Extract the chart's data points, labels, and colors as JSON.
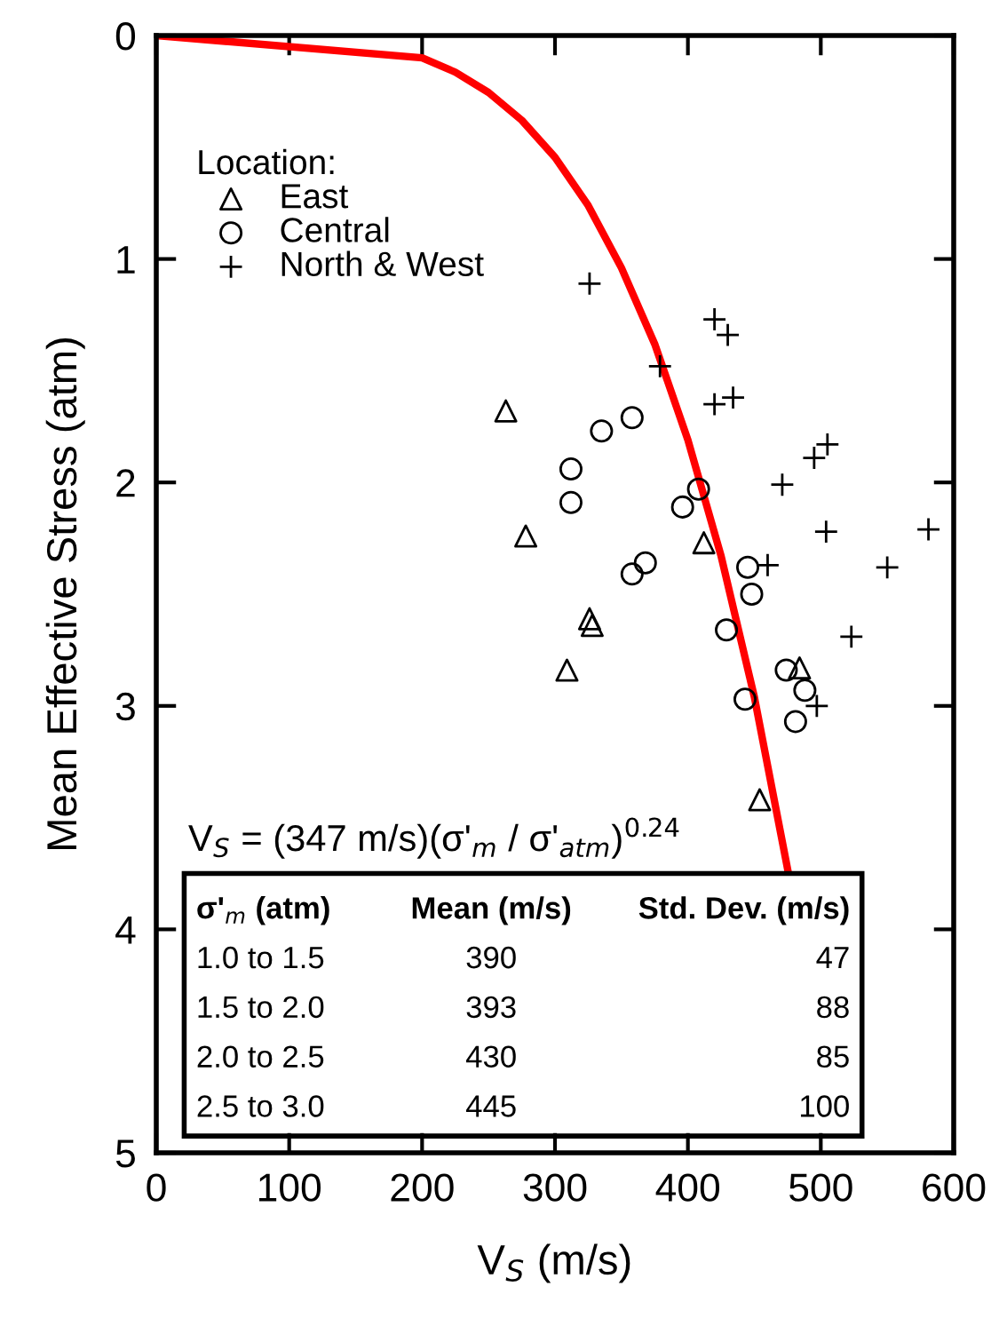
{
  "chart_data": {
    "type": "scatter",
    "xlabel": "V$_{S}$ (m/s)",
    "ylabel": "Mean Effective Stress (atm)",
    "legend_title": "Location:",
    "legend": "top left",
    "grid": false,
    "xlim": [
      0,
      600
    ],
    "xticks": [
      0,
      100,
      200,
      300,
      400,
      500,
      600
    ],
    "ylim": [
      5,
      0
    ],
    "yticks": [
      0,
      1,
      2,
      3,
      4,
      5
    ],
    "series": [
      {
        "name": "East",
        "marker": "triangle",
        "color": "#000000",
        "x": [
          263,
          278,
          326,
          328,
          309,
          412,
          484,
          454
        ],
        "values": [
          1.68,
          2.24,
          2.61,
          2.64,
          2.84,
          2.27,
          2.83,
          3.42
        ]
      },
      {
        "name": "Central",
        "marker": "circle",
        "color": "#000000",
        "x": [
          358,
          335,
          312,
          312,
          408,
          396,
          368,
          358,
          445,
          448,
          429,
          474,
          488,
          443,
          481
        ],
        "values": [
          1.71,
          1.77,
          1.94,
          2.09,
          2.03,
          2.11,
          2.36,
          2.41,
          2.38,
          2.5,
          2.66,
          2.84,
          2.93,
          2.97,
          3.07
        ]
      },
      {
        "name": "North & West",
        "marker": "cross",
        "color": "#000000",
        "x": [
          326,
          420,
          430,
          379,
          420,
          434,
          495,
          505,
          471,
          504,
          581,
          550,
          460,
          523,
          497
        ],
        "values": [
          1.11,
          1.27,
          1.34,
          1.48,
          1.65,
          1.62,
          1.89,
          1.83,
          2.01,
          2.22,
          2.21,
          2.38,
          2.37,
          2.69,
          3.0
        ]
      },
      {
        "type": "line",
        "color": "#ff0000",
        "marker": "none",
        "line_style": "solid",
        "x": [
          0,
          200,
          225,
          250,
          275,
          300,
          325,
          350,
          375,
          400,
          425,
          450,
          475
        ],
        "values": [
          0,
          0.1,
          0.164,
          0.255,
          0.379,
          0.545,
          0.761,
          1.04,
          1.38,
          1.81,
          2.33,
          2.96,
          3.73
        ]
      }
    ],
    "annotations": [
      "V$_{S}$ = (347 m/s)(σ'$_{m}$ / σ'$_{atm}$)$^{0.24}$",
      "σ'$_{m}$ (atm)",
      "Mean (m/s)",
      "Std. Dev. (m/s)",
      "1.0 to 1.5",
      "390",
      "47",
      "1.5 to 2.0",
      "393",
      "88",
      "2.0 to 2.5",
      "430",
      "85",
      "2.5 to 3.0",
      "445",
      "100"
    ]
  }
}
